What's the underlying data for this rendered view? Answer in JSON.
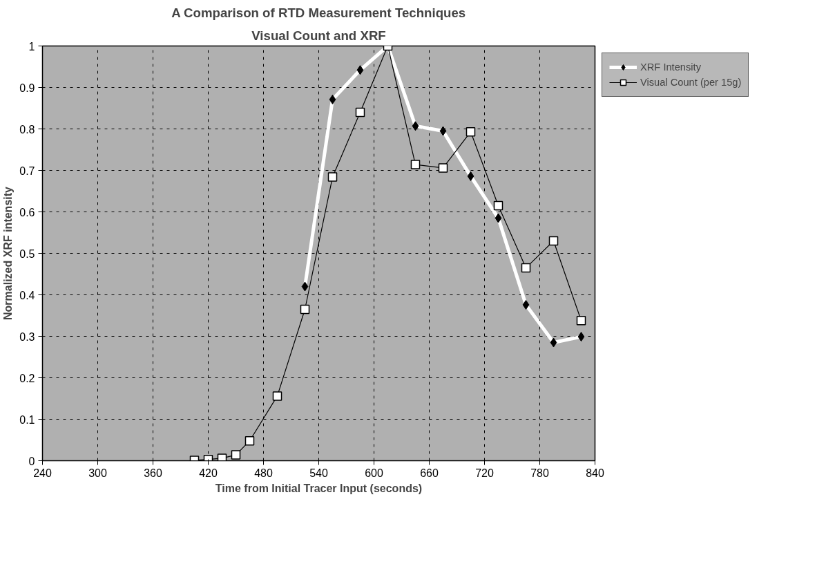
{
  "chart_data": {
    "type": "line",
    "title": "A Comparison of RTD Measurement Techniques",
    "subtitle": "Visual Count and XRF",
    "xlabel": "Time from Initial Tracer Input (seconds)",
    "ylabel": "Normalized XRF intensity",
    "xlim": [
      240,
      840
    ],
    "xticks": [
      240,
      300,
      360,
      420,
      480,
      540,
      600,
      660,
      720,
      780,
      840
    ],
    "ylim": [
      0,
      1
    ],
    "yticks": [
      0,
      0.1,
      0.2,
      0.3,
      0.4,
      0.5,
      0.6,
      0.7,
      0.8,
      0.9,
      1
    ],
    "grid": true,
    "line_style": "solid",
    "legend": "right",
    "series": [
      {
        "name": "XRF Intensity",
        "color": "#ffffff",
        "marker": "diamond",
        "x": [
          525,
          555,
          585,
          615,
          645,
          675,
          705,
          735,
          765,
          795,
          825
        ],
        "values": [
          0.42,
          0.871,
          0.942,
          1,
          0.807,
          0.795,
          0.686,
          0.585,
          0.376,
          0.285,
          0.299
        ]
      },
      {
        "name": "Visual Count (per 15g)",
        "color": "#000000",
        "marker": "square",
        "x": [
          405,
          420,
          435,
          450,
          465,
          495,
          525,
          555,
          585,
          615,
          645,
          675,
          705,
          735,
          765,
          795,
          825
        ],
        "values": [
          0.001,
          0.003,
          0.006,
          0.014,
          0.048,
          0.156,
          0.365,
          0.684,
          0.84,
          1,
          0.714,
          0.706,
          0.793,
          0.615,
          0.465,
          0.53,
          0.338
        ]
      }
    ]
  }
}
